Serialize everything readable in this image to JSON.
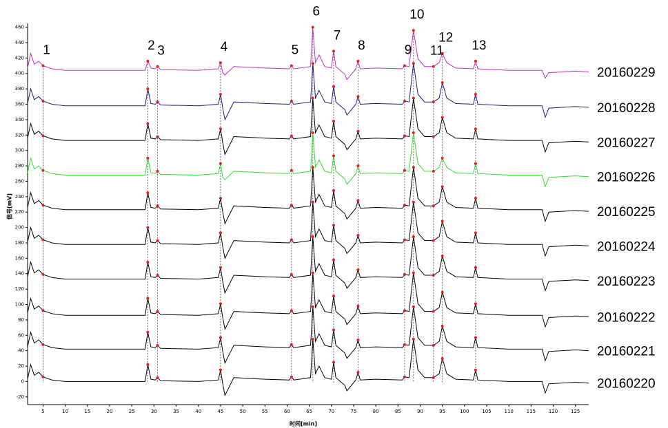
{
  "chart_data": {
    "type": "line",
    "xlabel": "时间[min]",
    "ylabel": "信号[mV]",
    "xlim": [
      1.5,
      128
    ],
    "ylim": [
      -30,
      465
    ],
    "xticks": [
      5,
      10,
      15,
      20,
      25,
      30,
      35,
      40,
      45,
      50,
      55,
      60,
      65,
      70,
      75,
      80,
      85,
      90,
      95,
      100,
      105,
      110,
      115,
      120,
      125
    ],
    "yticks": [
      -20,
      0,
      20,
      40,
      60,
      80,
      100,
      120,
      140,
      160,
      180,
      200,
      220,
      240,
      260,
      280,
      300,
      320,
      340,
      360,
      380,
      400,
      420,
      440,
      460
    ],
    "peak_labels": [
      "1",
      "2",
      "3",
      "4",
      "5",
      "6",
      "7",
      "8",
      "9",
      "10",
      "11",
      "12",
      "13"
    ],
    "peak_x": [
      5,
      28.6,
      30.8,
      45,
      61,
      65.8,
      70.5,
      76,
      86.5,
      88.5,
      93,
      95,
      102.5
    ],
    "peak_color": "#e02020",
    "x": [
      1.5,
      2.2,
      3,
      4,
      5,
      7,
      10,
      20,
      28,
      28.6,
      29.3,
      30.3,
      30.8,
      31.5,
      40,
      44.5,
      45,
      45.5,
      46,
      48,
      55,
      60.5,
      61,
      61.5,
      65.3,
      65.8,
      66.4,
      67.2,
      68.5,
      70,
      70.5,
      71,
      73,
      73.5,
      75.5,
      76,
      76.5,
      80,
      86,
      86.5,
      87.5,
      88.5,
      89.5,
      91,
      93,
      94.3,
      95,
      96,
      98,
      102,
      102.5,
      103,
      110,
      117.5,
      118.2,
      119,
      125,
      128
    ],
    "series": [
      {
        "name": "20160229",
        "color": "#c030c0",
        "values": [
          407,
          426,
          412,
          416,
          410,
          406,
          404,
          404,
          404,
          416,
          407,
          406,
          409,
          405,
          404,
          406,
          414,
          401,
          398,
          409,
          407,
          406,
          410,
          406,
          409,
          460,
          414,
          424,
          409,
          407,
          429,
          409,
          399,
          392,
          406,
          416,
          406,
          407,
          406,
          410,
          409,
          456,
          419,
          409,
          409,
          414,
          426,
          414,
          407,
          406,
          416,
          406,
          404,
          404,
          394,
          401,
          403,
          402
        ]
      },
      {
        "name": "20160228",
        "color": "#1a1a80",
        "values": [
          361,
          380,
          366,
          370,
          364,
          360,
          358,
          358,
          358,
          380,
          361,
          360,
          363,
          359,
          358,
          360,
          373,
          355,
          340,
          363,
          361,
          360,
          364,
          360,
          363,
          413,
          368,
          378,
          363,
          361,
          383,
          363,
          353,
          346,
          360,
          370,
          360,
          361,
          360,
          364,
          363,
          413,
          373,
          363,
          363,
          368,
          388,
          368,
          361,
          360,
          373,
          360,
          358,
          358,
          343,
          355,
          357,
          356
        ]
      },
      {
        "name": "20160227",
        "color": "#000000",
        "values": [
          316,
          335,
          321,
          325,
          319,
          315,
          313,
          313,
          313,
          335,
          316,
          315,
          318,
          314,
          313,
          315,
          328,
          310,
          295,
          318,
          316,
          315,
          319,
          315,
          318,
          368,
          323,
          333,
          318,
          316,
          338,
          318,
          308,
          301,
          315,
          325,
          315,
          316,
          315,
          319,
          318,
          368,
          328,
          318,
          318,
          323,
          343,
          323,
          316,
          315,
          328,
          315,
          313,
          313,
          298,
          310,
          312,
          311
        ]
      },
      {
        "name": "20160226",
        "color": "#30dd30",
        "values": [
          271,
          290,
          276,
          280,
          274,
          270,
          268,
          268,
          268,
          290,
          271,
          270,
          273,
          269,
          268,
          270,
          283,
          265,
          262,
          273,
          271,
          270,
          274,
          270,
          273,
          323,
          278,
          288,
          273,
          271,
          293,
          273,
          263,
          256,
          270,
          280,
          270,
          271,
          270,
          274,
          273,
          323,
          283,
          273,
          273,
          278,
          290,
          278,
          271,
          270,
          283,
          270,
          268,
          268,
          253,
          265,
          267,
          266
        ]
      },
      {
        "name": "20160225",
        "color": "#000000",
        "values": [
          226,
          245,
          231,
          235,
          229,
          225,
          223,
          223,
          223,
          245,
          226,
          225,
          228,
          224,
          223,
          225,
          238,
          220,
          205,
          228,
          226,
          225,
          229,
          225,
          228,
          278,
          233,
          243,
          228,
          226,
          248,
          228,
          218,
          211,
          225,
          235,
          225,
          226,
          225,
          229,
          228,
          278,
          238,
          228,
          228,
          233,
          253,
          233,
          226,
          225,
          238,
          225,
          223,
          223,
          208,
          220,
          222,
          221
        ]
      },
      {
        "name": "20160224",
        "color": "#000000",
        "values": [
          181,
          200,
          186,
          190,
          184,
          180,
          178,
          178,
          178,
          200,
          181,
          180,
          183,
          179,
          178,
          180,
          193,
          175,
          160,
          183,
          181,
          180,
          184,
          180,
          183,
          233,
          188,
          198,
          183,
          181,
          203,
          183,
          173,
          166,
          180,
          190,
          180,
          181,
          180,
          184,
          183,
          233,
          193,
          183,
          183,
          188,
          208,
          188,
          181,
          180,
          193,
          180,
          178,
          178,
          163,
          175,
          177,
          176
        ]
      },
      {
        "name": "20160223",
        "color": "#000000",
        "values": [
          136,
          155,
          141,
          145,
          139,
          135,
          133,
          133,
          133,
          155,
          136,
          135,
          138,
          134,
          133,
          135,
          148,
          130,
          115,
          138,
          136,
          135,
          139,
          135,
          138,
          188,
          143,
          153,
          138,
          136,
          158,
          138,
          128,
          121,
          135,
          145,
          135,
          136,
          135,
          139,
          138,
          188,
          148,
          138,
          138,
          143,
          163,
          143,
          136,
          135,
          148,
          135,
          133,
          133,
          118,
          130,
          132,
          131
        ]
      },
      {
        "name": "20160222",
        "color": "#000000",
        "values": [
          89,
          108,
          94,
          98,
          92,
          88,
          86,
          86,
          86,
          108,
          89,
          88,
          91,
          87,
          86,
          88,
          101,
          83,
          68,
          91,
          89,
          88,
          92,
          88,
          91,
          141,
          96,
          106,
          91,
          89,
          111,
          91,
          81,
          74,
          88,
          98,
          88,
          89,
          88,
          92,
          91,
          141,
          101,
          91,
          91,
          96,
          116,
          96,
          89,
          88,
          101,
          88,
          86,
          86,
          71,
          83,
          85,
          84
        ]
      },
      {
        "name": "20160221",
        "color": "#000000",
        "values": [
          45,
          64,
          50,
          54,
          48,
          44,
          42,
          42,
          42,
          64,
          45,
          44,
          47,
          43,
          42,
          44,
          57,
          39,
          24,
          47,
          45,
          44,
          48,
          44,
          47,
          97,
          52,
          62,
          47,
          45,
          67,
          47,
          37,
          30,
          44,
          54,
          44,
          45,
          44,
          48,
          47,
          97,
          57,
          47,
          47,
          52,
          72,
          52,
          45,
          44,
          57,
          44,
          42,
          42,
          27,
          39,
          41,
          40
        ]
      },
      {
        "name": "20160220",
        "color": "#000000",
        "values": [
          3,
          22,
          8,
          12,
          6,
          2,
          0,
          0,
          0,
          22,
          3,
          2,
          5,
          1,
          0,
          2,
          15,
          -3,
          -18,
          5,
          3,
          2,
          6,
          2,
          5,
          55,
          10,
          20,
          5,
          3,
          25,
          5,
          -5,
          -12,
          2,
          12,
          2,
          3,
          2,
          6,
          5,
          55,
          15,
          5,
          5,
          10,
          30,
          10,
          3,
          2,
          15,
          2,
          0,
          0,
          -15,
          -3,
          -1,
          -2
        ]
      }
    ]
  }
}
